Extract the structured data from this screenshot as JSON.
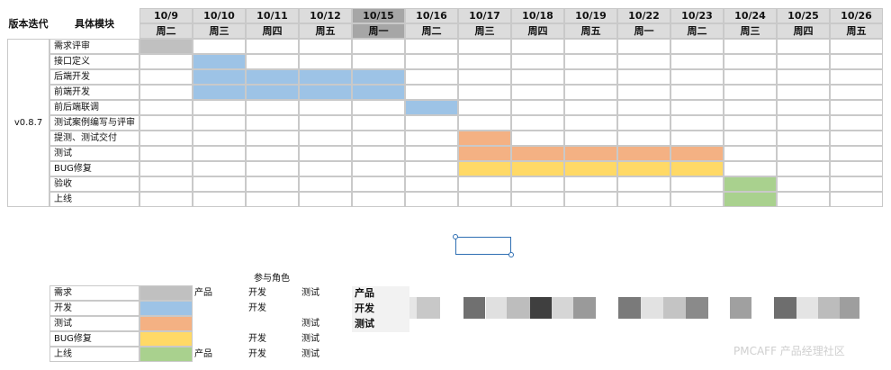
{
  "headers": {
    "version": "版本迭代",
    "module": "具体模块"
  },
  "version_label": "v0.8.7",
  "dates": [
    {
      "date": "10/9",
      "weekday": "周二"
    },
    {
      "date": "10/10",
      "weekday": "周三"
    },
    {
      "date": "10/11",
      "weekday": "周四"
    },
    {
      "date": "10/12",
      "weekday": "周五"
    },
    {
      "date": "10/15",
      "weekday": "周一"
    },
    {
      "date": "10/16",
      "weekday": "周二"
    },
    {
      "date": "10/17",
      "weekday": "周三"
    },
    {
      "date": "10/18",
      "weekday": "周四"
    },
    {
      "date": "10/19",
      "weekday": "周五"
    },
    {
      "date": "10/22",
      "weekday": "周一"
    },
    {
      "date": "10/23",
      "weekday": "周二"
    },
    {
      "date": "10/24",
      "weekday": "周三"
    },
    {
      "date": "10/25",
      "weekday": "周四"
    },
    {
      "date": "10/26",
      "weekday": "周五"
    }
  ],
  "highlighted_date_index": 4,
  "colors": {
    "review": "#c0c0c0",
    "dev": "#9dc3e6",
    "test": "#f4b183",
    "bugfix": "#ffd966",
    "launch": "#a9d18e",
    "header_bg": "#dcdcdc",
    "header_highlight": "#a6a6a6"
  },
  "tasks": [
    {
      "name": "需求评审",
      "color": "review",
      "start": 0,
      "end": 0
    },
    {
      "name": "接口定义",
      "color": "dev",
      "start": 1,
      "end": 1
    },
    {
      "name": "后端开发",
      "color": "dev",
      "start": 1,
      "end": 4
    },
    {
      "name": "前端开发",
      "color": "dev",
      "start": 1,
      "end": 4
    },
    {
      "name": "前后端联调",
      "color": "dev",
      "start": 5,
      "end": 5
    },
    {
      "name": "测试案例编写与评审",
      "color": null,
      "start": null,
      "end": null
    },
    {
      "name": "提测、测试交付",
      "color": "test",
      "start": 6,
      "end": 6
    },
    {
      "name": "测试",
      "color": "test",
      "start": 6,
      "end": 10
    },
    {
      "name": "BUG修复",
      "color": "bugfix",
      "start": 6,
      "end": 10
    },
    {
      "name": "验收",
      "color": "launch",
      "start": 11,
      "end": 11
    },
    {
      "name": "上线",
      "color": "launch",
      "start": 11,
      "end": 11
    }
  ],
  "legend": {
    "title": "参与角色",
    "items": [
      {
        "name": "需求",
        "color": "review",
        "roles": [
          "产品",
          "开发",
          "测试"
        ]
      },
      {
        "name": "开发",
        "color": "dev",
        "roles": [
          "",
          "开发",
          ""
        ]
      },
      {
        "name": "测试",
        "color": "test",
        "roles": [
          "",
          "",
          "测试"
        ]
      },
      {
        "name": "BUG修复",
        "color": "bugfix",
        "roles": [
          "",
          "开发",
          "测试"
        ]
      },
      {
        "name": "上线",
        "color": "launch",
        "roles": [
          "产品",
          "开发",
          "测试"
        ]
      }
    ]
  },
  "role_list": [
    "产品",
    "开发",
    "测试"
  ],
  "watermark": "PMCAFF 产品经理社区"
}
